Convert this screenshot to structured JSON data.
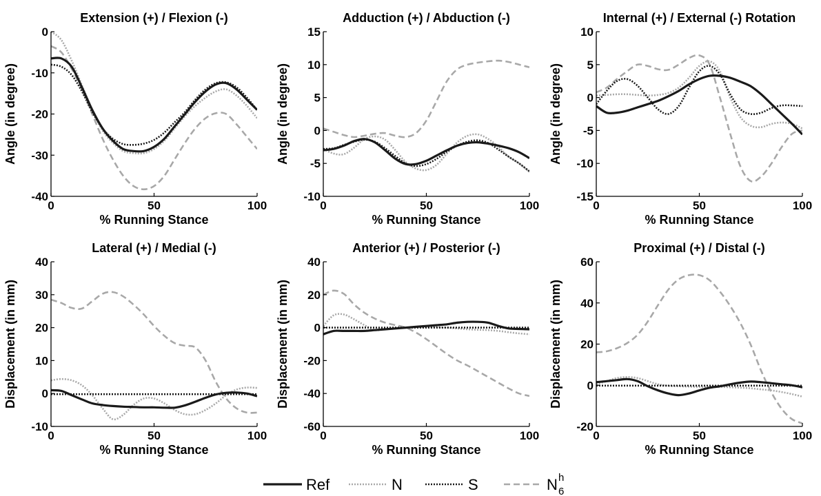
{
  "legend": {
    "placement": "bottom-center",
    "items": [
      {
        "label": "Ref",
        "sub": "",
        "sup": "",
        "color": "#1a1a1a",
        "dash": "solid"
      },
      {
        "label": "N",
        "sub": "",
        "sup": "",
        "color": "#a8a8a8",
        "dash": "dotted"
      },
      {
        "label": "S",
        "sub": "",
        "sup": "",
        "color": "#1a1a1a",
        "dash": "dotted"
      },
      {
        "label": "N",
        "sub": "6",
        "sup": "h",
        "color": "#a8a8a8",
        "dash": "dashed"
      }
    ]
  },
  "chart_data": [
    {
      "type": "line",
      "title": "Extension (+) / Flexion (-)",
      "xlabel": "% Running Stance",
      "ylabel": "Angle (in degree)",
      "xlim": [
        0,
        100
      ],
      "ylim": [
        -40,
        0
      ],
      "xticks": [
        0,
        50,
        100
      ],
      "yticks": [
        -40,
        -30,
        -20,
        -10,
        0
      ],
      "grid": false,
      "x": [
        0,
        5,
        10,
        15,
        20,
        25,
        30,
        35,
        40,
        45,
        50,
        55,
        60,
        65,
        70,
        75,
        80,
        85,
        90,
        95,
        100
      ],
      "series": [
        {
          "name": "Ref",
          "values": [
            -6.5,
            -6.5,
            -8.5,
            -13.5,
            -19,
            -23.5,
            -26.5,
            -28.5,
            -29,
            -29,
            -28,
            -26,
            -23,
            -20,
            -17,
            -14.5,
            -12.8,
            -12.5,
            -14,
            -16.5,
            -19
          ]
        },
        {
          "name": "N",
          "values": [
            0,
            -2,
            -7,
            -13,
            -19,
            -24,
            -27,
            -29,
            -29.5,
            -29.5,
            -28.5,
            -26.5,
            -23.5,
            -20.5,
            -18,
            -16,
            -14.5,
            -14,
            -15.5,
            -18,
            -21
          ]
        },
        {
          "name": "S",
          "values": [
            -8,
            -8.5,
            -10.5,
            -14.5,
            -19.5,
            -23.5,
            -26,
            -27.3,
            -27.5,
            -27.2,
            -26.3,
            -24.5,
            -22,
            -19.5,
            -16.5,
            -14,
            -12.5,
            -12.3,
            -13.5,
            -16,
            -19
          ]
        },
        {
          "name": "N6h",
          "values": [
            -3.5,
            -5,
            -9,
            -14,
            -20,
            -26,
            -31,
            -35,
            -37.5,
            -38.3,
            -37.5,
            -35,
            -31,
            -27,
            -23.5,
            -21,
            -19.8,
            -20,
            -22.5,
            -25.5,
            -28.5
          ]
        }
      ]
    },
    {
      "type": "line",
      "title": "Adduction (+) / Abduction (-)",
      "xlabel": "% Running Stance",
      "ylabel": "Angle (in degree)",
      "xlim": [
        0,
        100
      ],
      "ylim": [
        -10,
        15
      ],
      "xticks": [
        0,
        50,
        100
      ],
      "yticks": [
        -10,
        -5,
        0,
        5,
        10,
        15
      ],
      "grid": false,
      "x": [
        0,
        5,
        10,
        15,
        20,
        25,
        30,
        35,
        40,
        45,
        50,
        55,
        60,
        65,
        70,
        75,
        80,
        85,
        90,
        95,
        100
      ],
      "series": [
        {
          "name": "Ref",
          "values": [
            -3,
            -2.8,
            -2.3,
            -1.6,
            -1.3,
            -1.8,
            -3,
            -4.3,
            -5.1,
            -5.1,
            -4.6,
            -3.8,
            -3,
            -2.3,
            -1.9,
            -1.8,
            -2,
            -2.3,
            -2.7,
            -3.3,
            -4.2
          ]
        },
        {
          "name": "N",
          "values": [
            -2.8,
            -3.5,
            -3.6,
            -2.6,
            -1.3,
            -0.9,
            -1.4,
            -3,
            -4.8,
            -5.8,
            -6,
            -5.2,
            -3.5,
            -1.8,
            -0.8,
            -0.6,
            -1.3,
            -2.5,
            -4,
            -5,
            -6.3
          ]
        },
        {
          "name": "S",
          "values": [
            -2.8,
            -2.7,
            -2.2,
            -1.7,
            -1.4,
            -1.7,
            -2.7,
            -3.9,
            -5,
            -5.4,
            -5.1,
            -4.3,
            -3.2,
            -2.3,
            -1.7,
            -1.5,
            -1.9,
            -2.9,
            -4,
            -5,
            -6.2
          ]
        },
        {
          "name": "N6h",
          "values": [
            0.3,
            -0.2,
            -0.7,
            -1,
            -0.8,
            -0.5,
            -0.4,
            -0.8,
            -1,
            -0.4,
            1.5,
            4.5,
            7.5,
            9.3,
            10,
            10.3,
            10.5,
            10.6,
            10.4,
            10,
            9.6
          ]
        }
      ]
    },
    {
      "type": "line",
      "title": "Internal (+) / External (-) Rotation",
      "xlabel": "% Running Stance",
      "ylabel": "Angle (in degree)",
      "xlim": [
        0,
        100
      ],
      "ylim": [
        -15,
        10
      ],
      "xticks": [
        0,
        50,
        100
      ],
      "yticks": [
        -15,
        -10,
        -5,
        0,
        5,
        10
      ],
      "grid": false,
      "x": [
        0,
        5,
        10,
        15,
        20,
        25,
        30,
        35,
        40,
        45,
        50,
        55,
        60,
        65,
        70,
        75,
        80,
        85,
        90,
        95,
        100
      ],
      "series": [
        {
          "name": "Ref",
          "values": [
            -1.3,
            -2.3,
            -2.3,
            -2,
            -1.5,
            -1,
            -0.5,
            0.2,
            1,
            2,
            2.8,
            3.3,
            3.3,
            3,
            2.4,
            1.7,
            0.5,
            -1,
            -2.5,
            -4,
            -5.6
          ]
        },
        {
          "name": "N",
          "values": [
            0.3,
            0.4,
            0.5,
            0.5,
            0.4,
            0.3,
            0.4,
            0.7,
            1.5,
            3,
            4.8,
            5.5,
            4,
            0,
            -3,
            -4.3,
            -4.5,
            -4,
            -3.8,
            -4,
            -4.7
          ]
        },
        {
          "name": "S",
          "values": [
            -1,
            1,
            2.5,
            2.8,
            1.8,
            0,
            -1.8,
            -2.5,
            -1.3,
            1.5,
            4,
            4.8,
            3.5,
            0.5,
            -1.8,
            -2.5,
            -2.3,
            -1.6,
            -1.2,
            -1.2,
            -1.3
          ]
        },
        {
          "name": "N6h",
          "values": [
            0.8,
            1.5,
            2.8,
            4,
            5,
            4.8,
            4.3,
            4.2,
            5,
            6,
            6.4,
            5,
            0,
            -5.5,
            -10.5,
            -12.7,
            -12,
            -10,
            -7.5,
            -5.5,
            -5
          ]
        }
      ]
    },
    {
      "type": "line",
      "title": "Lateral (+) /  Medial (-)",
      "xlabel": "% Running Stance",
      "ylabel": "Displacement (in mm)",
      "xlim": [
        0,
        100
      ],
      "ylim": [
        -10,
        40
      ],
      "xticks": [
        0,
        50,
        100
      ],
      "yticks": [
        -10,
        0,
        10,
        20,
        30,
        40
      ],
      "grid": false,
      "x": [
        0,
        5,
        10,
        15,
        20,
        25,
        30,
        35,
        40,
        45,
        50,
        55,
        60,
        65,
        70,
        75,
        80,
        85,
        90,
        95,
        100
      ],
      "series": [
        {
          "name": "Ref",
          "values": [
            1,
            0.8,
            -0.5,
            -1.8,
            -3,
            -3.5,
            -3.8,
            -4,
            -4.1,
            -4.2,
            -4.2,
            -4.3,
            -4.3,
            -3.6,
            -2.5,
            -1.3,
            -0.3,
            0.2,
            0.3,
            0,
            -0.8
          ]
        },
        {
          "name": "N",
          "values": [
            4,
            4.4,
            4,
            2.5,
            -0.5,
            -4.5,
            -7.8,
            -6.5,
            -3.5,
            -1.5,
            -1.5,
            -3,
            -5,
            -6.3,
            -6.3,
            -5,
            -3,
            -0.5,
            1.2,
            1.8,
            1.7
          ]
        },
        {
          "name": "S",
          "values": [
            -0.2,
            -0.2,
            -0.2,
            -0.2,
            -0.2,
            -0.2,
            -0.2,
            -0.2,
            -0.2,
            -0.2,
            -0.2,
            -0.2,
            -0.2,
            -0.2,
            -0.2,
            -0.2,
            -0.2,
            -0.2,
            -0.2,
            -0.2,
            -0.2
          ]
        },
        {
          "name": "N6h",
          "values": [
            28.5,
            27.5,
            26,
            25.8,
            28,
            30.3,
            30.8,
            29.5,
            27,
            24,
            20.5,
            17.5,
            15.3,
            14.5,
            14,
            10,
            3.5,
            -1.5,
            -4.5,
            -5.8,
            -5.8
          ]
        }
      ]
    },
    {
      "type": "line",
      "title": "Anterior (+) / Posterior (-)",
      "xlabel": "% Running Stance",
      "ylabel": "Displacement (in mm)",
      "xlim": [
        0,
        100
      ],
      "ylim": [
        -60,
        40
      ],
      "xticks": [
        0,
        50,
        100
      ],
      "yticks": [
        -60,
        -40,
        -20,
        0,
        20,
        40
      ],
      "grid": false,
      "x": [
        0,
        5,
        10,
        15,
        20,
        25,
        30,
        35,
        40,
        45,
        50,
        55,
        60,
        65,
        70,
        75,
        80,
        85,
        90,
        95,
        100
      ],
      "series": [
        {
          "name": "Ref",
          "values": [
            -4,
            -2,
            -2,
            -2,
            -2,
            -1.5,
            -1,
            -0.5,
            0,
            0.5,
            1,
            1.5,
            2,
            3,
            3.5,
            3.5,
            3,
            1,
            -0.5,
            -0.8,
            -1
          ]
        },
        {
          "name": "N",
          "values": [
            1,
            7.5,
            8,
            5,
            1.5,
            -1.5,
            -1,
            -0.5,
            0,
            0.2,
            0.3,
            0.3,
            0,
            -0.5,
            -1,
            -1.3,
            -1.5,
            -2,
            -2.8,
            -3.5,
            -4
          ]
        },
        {
          "name": "S",
          "values": [
            0,
            0,
            0,
            0,
            0,
            0,
            0,
            0,
            0,
            0,
            0,
            0,
            0,
            0,
            0,
            0,
            0,
            0,
            0,
            0,
            0
          ]
        },
        {
          "name": "N6h",
          "values": [
            20,
            22.5,
            20.5,
            14,
            9,
            5.5,
            3,
            1.5,
            0,
            -3,
            -7,
            -11.5,
            -16,
            -20,
            -23,
            -26.5,
            -30,
            -33.5,
            -37,
            -40,
            -41.5
          ]
        }
      ]
    },
    {
      "type": "line",
      "title": "Proximal (+) / Distal (-)",
      "xlabel": "% Running Stance",
      "ylabel": "Displacement (in mm)",
      "xlim": [
        0,
        100
      ],
      "ylim": [
        -20,
        60
      ],
      "xticks": [
        0,
        50,
        100
      ],
      "yticks": [
        -20,
        0,
        20,
        40,
        60
      ],
      "grid": false,
      "x": [
        0,
        5,
        10,
        15,
        20,
        25,
        30,
        35,
        40,
        45,
        50,
        55,
        60,
        65,
        70,
        75,
        80,
        85,
        90,
        95,
        100
      ],
      "series": [
        {
          "name": "Ref",
          "values": [
            1.5,
            2,
            2.5,
            3,
            2,
            -0.5,
            -2.5,
            -4,
            -4.8,
            -4,
            -2.5,
            -1.2,
            -0.5,
            0.5,
            1.3,
            1.8,
            1.5,
            1,
            0.5,
            0,
            -1
          ]
        },
        {
          "name": "N",
          "values": [
            0.5,
            2,
            3.5,
            4,
            3.5,
            2,
            0.5,
            -0.3,
            -0.5,
            -0.7,
            -0.8,
            -0.8,
            -0.8,
            -1,
            -1.2,
            -1.5,
            -2,
            -2.5,
            -3.3,
            -4.3,
            -5.5
          ]
        },
        {
          "name": "S",
          "values": [
            -0.2,
            -0.2,
            -0.2,
            -0.2,
            -0.2,
            -0.2,
            -0.2,
            -0.2,
            -0.2,
            -0.2,
            -0.2,
            -0.2,
            -0.2,
            -0.2,
            -0.2,
            -0.2,
            -0.2,
            -0.2,
            -0.2,
            -0.2,
            -0.2
          ]
        },
        {
          "name": "N6h",
          "values": [
            16,
            16.5,
            18,
            20.5,
            24.5,
            31,
            39,
            46.5,
            51.5,
            53.5,
            53.5,
            51,
            45.5,
            38.5,
            30,
            19.5,
            7,
            -3.5,
            -11.5,
            -16.5,
            -18.5
          ]
        }
      ]
    }
  ]
}
